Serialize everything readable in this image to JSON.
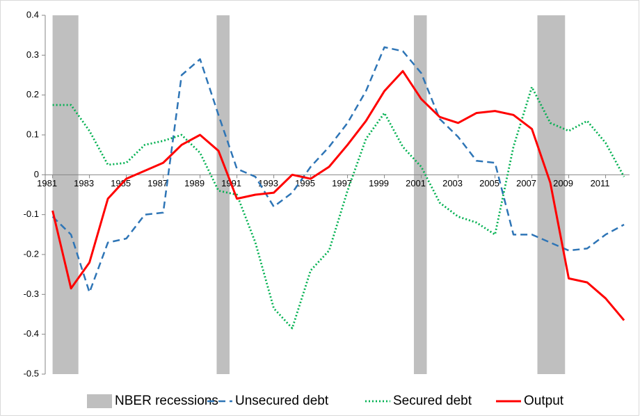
{
  "chart_data": {
    "type": "line",
    "x": [
      1981,
      1982,
      1983,
      1984,
      1985,
      1986,
      1987,
      1988,
      1989,
      1990,
      1991,
      1992,
      1993,
      1994,
      1995,
      1996,
      1997,
      1998,
      1999,
      2000,
      2001,
      2002,
      2003,
      2004,
      2005,
      2006,
      2007,
      2008,
      2009,
      2010,
      2011,
      2012
    ],
    "series": [
      {
        "name": "Unsecured debt",
        "color": "#2e75b6",
        "dash": "dashed",
        "values": [
          -0.105,
          -0.15,
          -0.295,
          -0.17,
          -0.16,
          -0.1,
          -0.095,
          0.25,
          0.29,
          0.15,
          0.015,
          -0.005,
          -0.08,
          -0.045,
          0.02,
          0.07,
          0.13,
          0.21,
          0.32,
          0.31,
          0.255,
          0.14,
          0.095,
          0.035,
          0.03,
          -0.15,
          -0.15,
          -0.17,
          -0.19,
          -0.185,
          -0.15,
          -0.125
        ]
      },
      {
        "name": "Secured debt",
        "color": "#00b050",
        "dash": "dotted",
        "values": [
          0.175,
          0.175,
          0.11,
          0.025,
          0.03,
          0.075,
          0.085,
          0.1,
          0.055,
          -0.04,
          -0.05,
          -0.17,
          -0.335,
          -0.385,
          -0.24,
          -0.19,
          -0.04,
          0.09,
          0.155,
          0.07,
          0.02,
          -0.07,
          -0.105,
          -0.12,
          -0.15,
          0.07,
          0.22,
          0.13,
          0.11,
          0.135,
          0.08,
          -0.005
        ]
      },
      {
        "name": "Output",
        "color": "#ff0000",
        "dash": "solid",
        "values": [
          -0.09,
          -0.285,
          -0.22,
          -0.06,
          -0.01,
          0.01,
          0.03,
          0.075,
          0.1,
          0.06,
          -0.06,
          -0.05,
          -0.045,
          0.0,
          -0.01,
          0.02,
          0.075,
          0.135,
          0.21,
          0.26,
          0.19,
          0.145,
          0.13,
          0.155,
          0.16,
          0.15,
          0.115,
          -0.02,
          -0.26,
          -0.27,
          -0.31,
          -0.365
        ]
      }
    ],
    "recessions": {
      "name": "NBER recessions",
      "color": "#bfbfbf",
      "spans": [
        [
          1981,
          1982.4
        ],
        [
          1989.9,
          1990.6
        ],
        [
          2000.6,
          2001.3
        ],
        [
          2007.3,
          2008.8
        ]
      ]
    },
    "xlim": [
      1980.6,
      2012.3
    ],
    "xticks": [
      1981,
      1983,
      1985,
      1987,
      1989,
      1991,
      1993,
      1995,
      1997,
      1999,
      2001,
      2003,
      2005,
      2007,
      2009,
      2011
    ],
    "ylim": [
      -0.5,
      0.4
    ],
    "yticks": [
      0.4,
      0.3,
      0.2,
      0.1,
      0,
      -0.1,
      -0.2,
      -0.3,
      -0.4,
      -0.5
    ],
    "legend": "bottom"
  }
}
